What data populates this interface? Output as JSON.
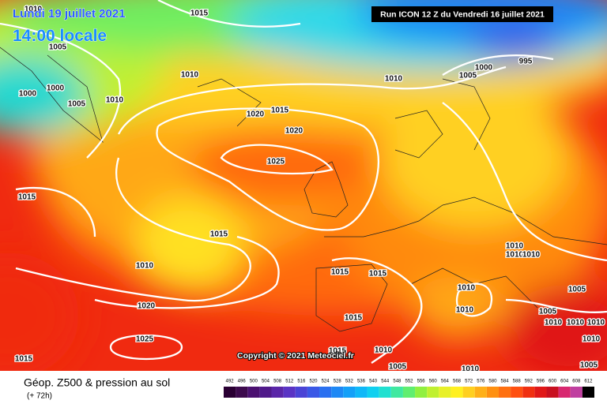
{
  "header": {
    "date": "Lundi 19 juillet 2021",
    "time": "14:00 locale",
    "run": "Run ICON 12 Z du Vendredi 16 juillet 2021"
  },
  "copyright": "Copyright © 2021 Meteociel.fr",
  "footer": {
    "title": "Géop. Z500 & pression au sol",
    "lead": "(+ 72h)"
  },
  "scale": {
    "values": [
      492,
      496,
      500,
      504,
      508,
      512,
      516,
      520,
      524,
      528,
      532,
      536,
      540,
      544,
      548,
      552,
      556,
      560,
      564,
      568,
      572,
      576,
      580,
      584,
      588,
      592,
      596,
      600,
      604,
      608,
      612
    ],
    "colors": [
      "#2a0033",
      "#3d0a4d",
      "#4b1070",
      "#501a8a",
      "#5a26a8",
      "#5a34c4",
      "#4a44d6",
      "#3a58e6",
      "#2a70f0",
      "#1e88f5",
      "#14a0f8",
      "#10b8f8",
      "#10d0f0",
      "#20e0d0",
      "#40e8a0",
      "#60ee70",
      "#90f040",
      "#c0f030",
      "#e8f028",
      "#fff020",
      "#ffd020",
      "#ffb018",
      "#ff9010",
      "#ff7010",
      "#ff5010",
      "#f03010",
      "#e01818",
      "#c81020",
      "#d82870",
      "#c040a0",
      "#000000"
    ]
  },
  "isobar_labels": [
    1015,
    1010,
    1005,
    1000,
    1000,
    1005,
    1010,
    1010,
    1010,
    1005,
    1000,
    995,
    1020,
    1015,
    1020,
    1025,
    1015,
    1015,
    1010,
    1015,
    1015,
    1020,
    1025,
    1015,
    1010,
    1010,
    1005,
    1010,
    1015,
    1010,
    1010,
    1010,
    1010,
    1005,
    1005,
    1010,
    1010,
    1010,
    1010,
    1005,
    1015
  ]
}
